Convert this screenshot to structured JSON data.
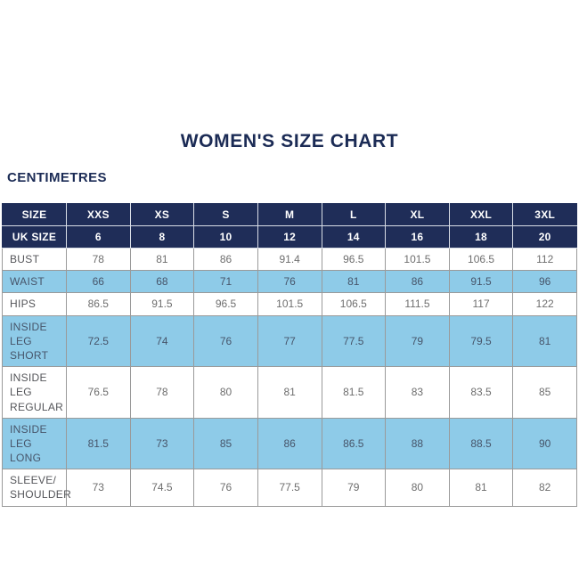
{
  "page": {
    "title": "WOMEN'S SIZE CHART",
    "unit_label": "CENTIMETRES"
  },
  "colors": {
    "navy": "#1f2d58",
    "navy_text": "#1b2b55",
    "light_blue": "#8ecbe8"
  },
  "chart_data": {
    "type": "table",
    "title": "WOMEN'S SIZE CHART",
    "unit": "CENTIMETRES",
    "header_rows": [
      {
        "label": "SIZE",
        "values": [
          "XXS",
          "XS",
          "S",
          "M",
          "L",
          "XL",
          "XXL",
          "3XL"
        ]
      },
      {
        "label": "UK SIZE",
        "values": [
          "6",
          "8",
          "10",
          "12",
          "14",
          "16",
          "18",
          "20"
        ]
      }
    ],
    "rows": [
      {
        "label": "BUST",
        "values": [
          78,
          81,
          86,
          91.4,
          96.5,
          101.5,
          106.5,
          112
        ]
      },
      {
        "label": "WAIST",
        "values": [
          66,
          68,
          71,
          76,
          81,
          86,
          91.5,
          96
        ]
      },
      {
        "label": "HIPS",
        "values": [
          86.5,
          91.5,
          96.5,
          101.5,
          106.5,
          111.5,
          117,
          122
        ]
      },
      {
        "label": "INSIDE LEG\nSHORT",
        "values": [
          72.5,
          74,
          76,
          77,
          77.5,
          79,
          79.5,
          81
        ]
      },
      {
        "label": "INSIDE LEG\nREGULAR",
        "values": [
          76.5,
          78,
          80,
          81,
          81.5,
          83,
          83.5,
          85
        ]
      },
      {
        "label": "INSIDE LEG\nLONG",
        "values": [
          81.5,
          73,
          85,
          86,
          86.5,
          88,
          88.5,
          90
        ]
      },
      {
        "label": "SLEEVE/\nSHOULDER",
        "values": [
          73,
          74.5,
          76,
          77.5,
          79,
          80,
          81,
          82
        ]
      }
    ]
  }
}
